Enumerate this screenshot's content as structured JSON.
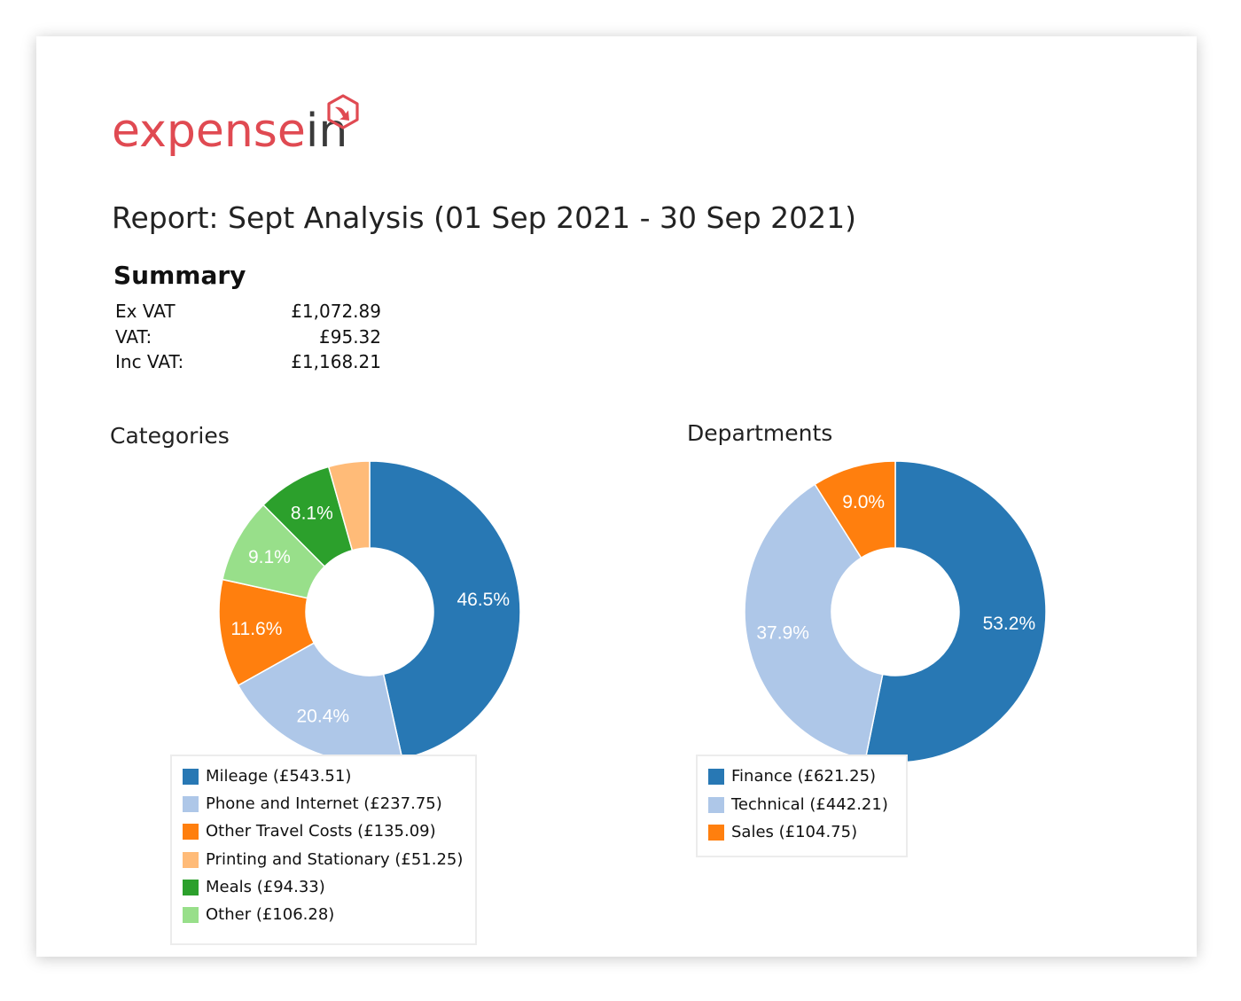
{
  "logo": {
    "part1": "expense",
    "part2": "in"
  },
  "report_title": "Report: Sept Analysis (01 Sep 2021 - 30 Sep 2021)",
  "summary": {
    "heading": "Summary",
    "rows": [
      {
        "label": "Ex VAT",
        "value": "£1,072.89"
      },
      {
        "label": "VAT:",
        "value": "£95.32"
      },
      {
        "label": "Inc VAT:",
        "value": "£1,168.21"
      }
    ]
  },
  "colors": {
    "logo_red": "#e04a52",
    "blue": "#2878b4",
    "light_blue": "#aec7e8",
    "orange": "#ff7f0e",
    "light_orange": "#ffbb78",
    "green": "#2ca02c",
    "light_green": "#98df8a"
  },
  "chart_data": [
    {
      "type": "pie",
      "donut": true,
      "title": "Categories",
      "slices": [
        {
          "legend": "Mileage (£543.51)",
          "value": 543.51,
          "label": "46.5%",
          "color": "#2878b4"
        },
        {
          "legend": "Phone and Internet (£237.75)",
          "value": 237.75,
          "label": "20.4%",
          "color": "#aec7e8"
        },
        {
          "legend": "Other Travel Costs (£135.09)",
          "value": 135.09,
          "label": "11.6%",
          "color": "#ff7f0e"
        },
        {
          "legend": "Other (£106.28)",
          "value": 106.28,
          "label": "9.1%",
          "color": "#98df8a"
        },
        {
          "legend": "Meals (£94.33)",
          "value": 94.33,
          "label": "8.1%",
          "color": "#2ca02c"
        },
        {
          "legend": "Printing and Stationary (£51.25)",
          "value": 51.25,
          "label": "",
          "color": "#ffbb78"
        }
      ],
      "legend_order": [
        "Mileage (£543.51)",
        "Phone and Internet (£237.75)",
        "Other Travel Costs (£135.09)",
        "Printing and Stationary (£51.25)",
        "Meals (£94.33)",
        "Other (£106.28)"
      ],
      "legend_placement": "bottom"
    },
    {
      "type": "pie",
      "donut": true,
      "title": "Departments",
      "slices": [
        {
          "legend": "Finance (£621.25)",
          "value": 621.25,
          "label": "53.2%",
          "color": "#2878b4"
        },
        {
          "legend": "Technical (£442.21)",
          "value": 442.21,
          "label": "37.9%",
          "color": "#aec7e8"
        },
        {
          "legend": "Sales (£104.75)",
          "value": 104.75,
          "label": "9.0%",
          "color": "#ff7f0e"
        }
      ],
      "legend_order": [
        "Finance (£621.25)",
        "Technical (£442.21)",
        "Sales (£104.75)"
      ],
      "legend_placement": "bottom"
    }
  ]
}
